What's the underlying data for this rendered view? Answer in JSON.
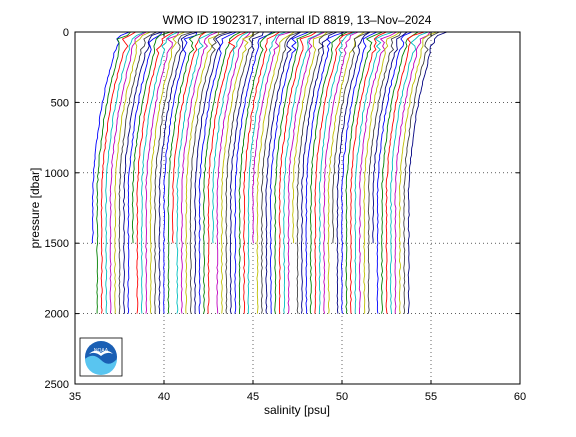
{
  "chart_data": {
    "type": "line",
    "title": "WMO ID 1902317, internal ID 8819, 13–Nov–2024",
    "xlabel": "salinity [psu]",
    "ylabel": "pressure [dbar]",
    "xlim": [
      35,
      60
    ],
    "ylim": [
      2500,
      0
    ],
    "y_axis_reversed": true,
    "x_ticks": [
      "35",
      "40",
      "45",
      "50",
      "55",
      "60"
    ],
    "y_ticks": [
      "0",
      "500",
      "1000",
      "1500",
      "2000",
      "2500"
    ],
    "grid": "dotted",
    "profiles": {
      "count": 72,
      "x_offset_step_psu": 0.25,
      "description_values": {
        "pressure_dbar": [
          0,
          20,
          50,
          100,
          200,
          300,
          400,
          500,
          600,
          700,
          800,
          900,
          1000,
          1100,
          1200,
          1400,
          1600,
          1800,
          2000
        ],
        "first_profile_salinity_psu": [
          38.0,
          37.7,
          37.3,
          37.3,
          37.1,
          36.9,
          36.7,
          36.55,
          36.4,
          36.3,
          36.2,
          36.1,
          36.05,
          36.0,
          36.0,
          36.0,
          36.0,
          36.0,
          36.0
        ]
      },
      "colors": [
        "#0000ff",
        "#008000",
        "#ff0000",
        "#00bfbf",
        "#bf00bf",
        "#bfbf00",
        "#404040",
        "#000080"
      ]
    },
    "logo_text": "NOAA"
  }
}
